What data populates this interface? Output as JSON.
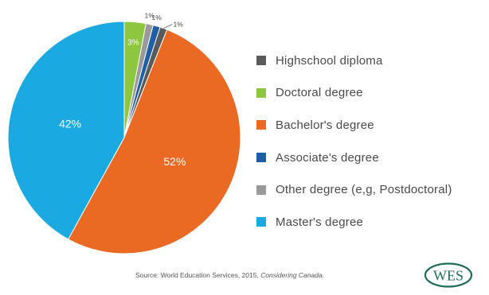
{
  "chart_data": {
    "type": "pie",
    "start_angle_deg": 0,
    "slices": [
      {
        "label": "Doctoral degree",
        "value": 3,
        "display": "3%",
        "color": "#8dc63f",
        "label_style": "inside-small"
      },
      {
        "label": "Other degree (e,g, Postdoctoral)",
        "value": 1,
        "display": "1%",
        "color": "#9a9a9a",
        "label_style": "outside"
      },
      {
        "label": "Associate's degree",
        "value": 1,
        "display": "1%",
        "color": "#1f5fa6",
        "label_style": "outside"
      },
      {
        "label": "Highschool diploma",
        "value": 1,
        "display": "1%",
        "color": "#5a5a5a",
        "label_style": "outside-leader"
      },
      {
        "label": "Bachelor's degree",
        "value": 52,
        "display": "52%",
        "color": "#ea6a24",
        "label_style": "inside"
      },
      {
        "label": "Master's degree",
        "value": 42,
        "display": "42%",
        "color": "#1aa9e1",
        "label_style": "inside"
      }
    ],
    "legend": [
      {
        "label": "Highschool  diploma",
        "color": "#5a5a5a"
      },
      {
        "label": "Doctoral degree",
        "color": "#8dc63f"
      },
      {
        "label": "Bachelor's degree",
        "color": "#ea6a24"
      },
      {
        "label": "Associate's degree",
        "color": "#1f5fa6"
      },
      {
        "label": "Other degree (e,g, Postdoctoral)",
        "color": "#9a9a9a"
      },
      {
        "label": "Master's degree",
        "color": "#1aa9e1"
      }
    ],
    "legend_placement": "right"
  },
  "source": {
    "prefix": "Source: World Education Services, 2015, ",
    "title": "Considering Canada."
  },
  "logo": {
    "text": "WES",
    "color": "#1e6b5a"
  }
}
